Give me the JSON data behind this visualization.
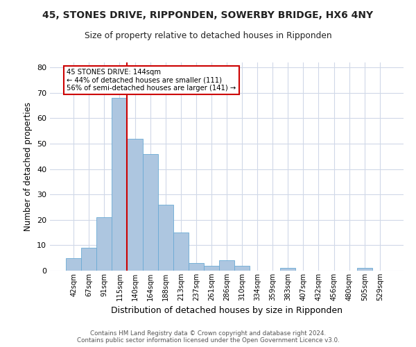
{
  "title_line1": "45, STONES DRIVE, RIPPONDEN, SOWERBY BRIDGE, HX6 4NY",
  "title_line2": "Size of property relative to detached houses in Ripponden",
  "xlabel": "Distribution of detached houses by size in Ripponden",
  "ylabel": "Number of detached properties",
  "bar_color": "#adc6e0",
  "bar_edge_color": "#6aaad4",
  "annotation_line_color": "#cc0000",
  "categories": [
    "42sqm",
    "67sqm",
    "91sqm",
    "115sqm",
    "140sqm",
    "164sqm",
    "188sqm",
    "213sqm",
    "237sqm",
    "261sqm",
    "286sqm",
    "310sqm",
    "334sqm",
    "359sqm",
    "383sqm",
    "407sqm",
    "432sqm",
    "456sqm",
    "480sqm",
    "505sqm",
    "529sqm"
  ],
  "values": [
    5,
    9,
    21,
    68,
    52,
    46,
    26,
    15,
    3,
    2,
    4,
    2,
    0,
    0,
    1,
    0,
    0,
    0,
    0,
    1,
    0
  ],
  "property_bin_index": 3.5,
  "annotation_text_line1": "45 STONES DRIVE: 144sqm",
  "annotation_text_line2": "← 44% of detached houses are smaller (111)",
  "annotation_text_line3": "56% of semi-detached houses are larger (141) →",
  "ylim": [
    0,
    82
  ],
  "yticks": [
    0,
    10,
    20,
    30,
    40,
    50,
    60,
    70,
    80
  ],
  "footer_line1": "Contains HM Land Registry data © Crown copyright and database right 2024.",
  "footer_line2": "Contains public sector information licensed under the Open Government Licence v3.0.",
  "background_color": "#ffffff",
  "grid_color": "#d0d8e8"
}
